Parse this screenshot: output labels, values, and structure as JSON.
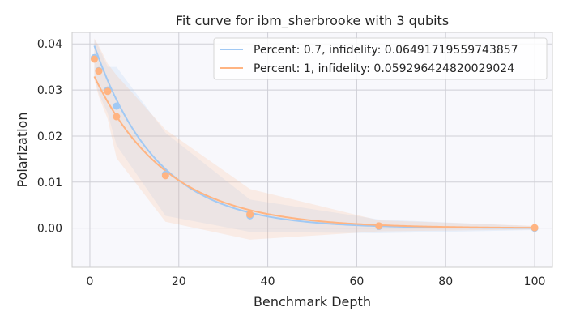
{
  "chart_data": {
    "type": "line",
    "title": "Fit curve for ibm_sherbrooke with 3 qubits",
    "xlabel": "Benchmark Depth",
    "ylabel": "Polarization",
    "xlim": [
      -4,
      104
    ],
    "ylim": [
      -0.0085,
      0.0425
    ],
    "x_ticks": [
      0,
      20,
      40,
      60,
      80,
      100
    ],
    "x_tick_labels": [
      "0",
      "20",
      "40",
      "60",
      "80",
      "100"
    ],
    "y_ticks": [
      0.0,
      0.01,
      0.02,
      0.03,
      0.04
    ],
    "y_tick_labels": [
      "0.00",
      "0.01",
      "0.02",
      "0.03",
      "0.04"
    ],
    "grid": true,
    "legend_position": "top-right",
    "series": [
      {
        "name": "Percent: 0.7, infidelity: 0.06491719559743857",
        "color": "#a1c9f4",
        "fit_params": {
          "A": 0.0425,
          "p": 0.932
        },
        "points": [
          {
            "x": 1,
            "y": 0.037,
            "err": 0.004
          },
          {
            "x": 2,
            "y": 0.0342,
            "err": 0.005
          },
          {
            "x": 4,
            "y": 0.03,
            "err": 0.005
          },
          {
            "x": 6,
            "y": 0.0265,
            "err": 0.0085
          },
          {
            "x": 17,
            "y": 0.0117,
            "err": 0.009
          },
          {
            "x": 36,
            "y": 0.0027,
            "err": 0.0035
          },
          {
            "x": 65,
            "y": 0.0004,
            "err": 0.0015
          },
          {
            "x": 100,
            "y": 0.0,
            "err": 0.0004
          }
        ]
      },
      {
        "name": "Percent: 1, infidelity: 0.059296424820029024",
        "color": "#ffb482",
        "fit_params": {
          "A": 0.035,
          "p": 0.941
        },
        "points": [
          {
            "x": 1,
            "y": 0.0367,
            "err": 0.0045
          },
          {
            "x": 2,
            "y": 0.0341,
            "err": 0.0055
          },
          {
            "x": 4,
            "y": 0.0297,
            "err": 0.006
          },
          {
            "x": 6,
            "y": 0.0242,
            "err": 0.009
          },
          {
            "x": 17,
            "y": 0.0114,
            "err": 0.01
          },
          {
            "x": 36,
            "y": 0.003,
            "err": 0.0055
          },
          {
            "x": 65,
            "y": 0.0005,
            "err": 0.0012
          },
          {
            "x": 100,
            "y": 0.0001,
            "err": 0.0004
          }
        ]
      }
    ]
  }
}
